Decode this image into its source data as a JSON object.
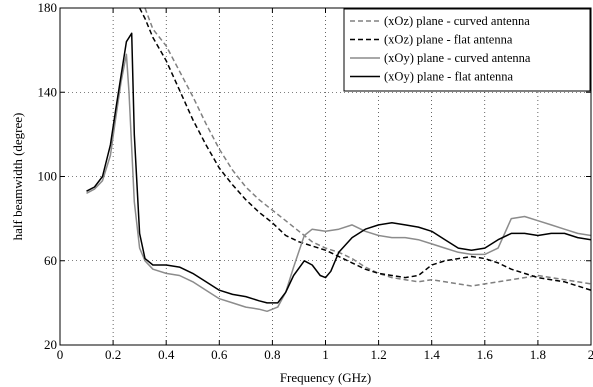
{
  "chart_data": {
    "type": "line",
    "title": "",
    "xlabel": "Frequency (GHz)",
    "ylabel": "half beamwidth (degree)",
    "xlim": [
      0,
      2
    ],
    "ylim": [
      20,
      180
    ],
    "xticks": [
      0,
      0.2,
      0.4,
      0.6,
      0.8,
      1,
      1.2,
      1.4,
      1.6,
      1.8,
      2
    ],
    "xtick_labels": [
      "0",
      "0.2",
      "0.4",
      "0.6",
      "0.8",
      "1",
      "1.2",
      "1.4",
      "1.6",
      "1.8",
      "2"
    ],
    "yticks": [
      20,
      60,
      100,
      140,
      180
    ],
    "ytick_labels": [
      "20",
      "60",
      "100",
      "140",
      "180"
    ],
    "grid": true,
    "legend_position": "top-right",
    "series": [
      {
        "name": "(xOz) plane - curved antenna",
        "color": "#808080",
        "dash": "dashed",
        "x": [
          0.32,
          0.35,
          0.4,
          0.45,
          0.5,
          0.55,
          0.6,
          0.65,
          0.7,
          0.75,
          0.8,
          0.85,
          0.9,
          0.95,
          1.0,
          1.05,
          1.1,
          1.15,
          1.2,
          1.25,
          1.3,
          1.35,
          1.4,
          1.45,
          1.5,
          1.55,
          1.6,
          1.65,
          1.7,
          1.75,
          1.8,
          1.85,
          1.9,
          1.95,
          2.0
        ],
        "y": [
          180,
          170,
          162,
          150,
          138,
          125,
          113,
          103,
          95,
          89,
          84,
          79,
          74,
          69,
          66,
          64,
          61,
          57,
          54,
          52,
          51,
          50,
          51,
          50,
          49,
          48,
          49,
          50,
          51,
          52,
          53,
          52,
          51,
          50,
          49
        ]
      },
      {
        "name": "(xOz) plane - flat antenna",
        "color": "#000000",
        "dash": "dashed",
        "x": [
          0.3,
          0.32,
          0.35,
          0.4,
          0.45,
          0.5,
          0.55,
          0.6,
          0.65,
          0.7,
          0.75,
          0.8,
          0.85,
          0.9,
          0.95,
          1.0,
          1.05,
          1.1,
          1.15,
          1.2,
          1.25,
          1.3,
          1.35,
          1.4,
          1.45,
          1.5,
          1.55,
          1.6,
          1.65,
          1.7,
          1.75,
          1.8,
          1.85,
          1.9,
          1.95,
          2.0
        ],
        "y": [
          180,
          175,
          166,
          155,
          141,
          127,
          115,
          104,
          96,
          89,
          83,
          78,
          72,
          69,
          67,
          65,
          62,
          59,
          56,
          54,
          53,
          52,
          53,
          58,
          60,
          61,
          62,
          61,
          59,
          56,
          54,
          52,
          51,
          50,
          48,
          46
        ]
      },
      {
        "name": "(xOy) plane - curved antenna",
        "color": "#8c8c8c",
        "dash": "solid",
        "x": [
          0.1,
          0.13,
          0.16,
          0.19,
          0.21,
          0.23,
          0.25,
          0.26,
          0.28,
          0.3,
          0.32,
          0.35,
          0.4,
          0.45,
          0.5,
          0.55,
          0.6,
          0.65,
          0.7,
          0.75,
          0.78,
          0.82,
          0.85,
          0.88,
          0.92,
          0.95,
          1.0,
          1.05,
          1.1,
          1.15,
          1.2,
          1.25,
          1.3,
          1.35,
          1.4,
          1.45,
          1.5,
          1.55,
          1.6,
          1.65,
          1.7,
          1.75,
          1.8,
          1.85,
          1.9,
          1.95,
          2.0
        ],
        "y": [
          92,
          94,
          98,
          110,
          128,
          145,
          158,
          140,
          88,
          66,
          60,
          56,
          54,
          53,
          50,
          46,
          42,
          40,
          38,
          37,
          36,
          38,
          45,
          57,
          72,
          75,
          74,
          75,
          77,
          74,
          72,
          71,
          71,
          70,
          68,
          66,
          64,
          63,
          63,
          66,
          80,
          81,
          79,
          77,
          75,
          73,
          72
        ]
      },
      {
        "name": "(xOy) plane - flat antenna",
        "color": "#000000",
        "dash": "solid",
        "x": [
          0.1,
          0.13,
          0.16,
          0.19,
          0.21,
          0.23,
          0.25,
          0.27,
          0.28,
          0.3,
          0.32,
          0.35,
          0.4,
          0.45,
          0.5,
          0.55,
          0.6,
          0.65,
          0.7,
          0.75,
          0.78,
          0.82,
          0.85,
          0.88,
          0.92,
          0.95,
          0.98,
          1.0,
          1.02,
          1.05,
          1.1,
          1.15,
          1.2,
          1.25,
          1.3,
          1.35,
          1.4,
          1.45,
          1.5,
          1.55,
          1.6,
          1.65,
          1.7,
          1.75,
          1.8,
          1.85,
          1.9,
          1.95,
          2.0
        ],
        "y": [
          93,
          95,
          100,
          115,
          132,
          148,
          164,
          168,
          120,
          73,
          61,
          58,
          58,
          57,
          54,
          50,
          46,
          44,
          43,
          41,
          40,
          40,
          45,
          53,
          60,
          58,
          53,
          52,
          55,
          64,
          71,
          75,
          77,
          78,
          77,
          76,
          74,
          70,
          66,
          65,
          66,
          70,
          73,
          73,
          72,
          73,
          73,
          71,
          70
        ]
      }
    ]
  }
}
